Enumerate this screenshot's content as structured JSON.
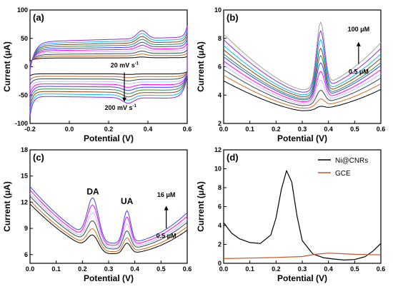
{
  "palette": [
    "#000000",
    "#d2691e",
    "#2f4f4f",
    "#c0c0ff",
    "#ff00ff",
    "#4040ff",
    "#2e8b57",
    "#8b4513",
    "#00bfff",
    "#8a2be2",
    "#a0a0a0",
    "#6b8e23",
    "#7b2aa0"
  ],
  "chart_data": [
    {
      "panel": "(a)",
      "type": "line",
      "xlabel": "Potential (V)",
      "ylabel": "Current (μA)",
      "xlim": [
        -0.2,
        0.6
      ],
      "ylim": [
        -100,
        100
      ],
      "xticks": [
        "-0.2",
        "0.0",
        "0.2",
        "0.4",
        "0.6"
      ],
      "yticks": [
        "-100",
        "-50",
        "0",
        "50",
        "100"
      ],
      "annotations": {
        "top": "20 mV s",
        "top_sup": "-1",
        "bottom": "200 mV s",
        "bottom_sup": "-1"
      },
      "scan_rates_mV_s": [
        20,
        200
      ],
      "curves": 10
    },
    {
      "panel": "(b)",
      "type": "line",
      "xlabel": "Potential (V)",
      "ylabel": "Current (μA)",
      "xlim": [
        0.0,
        0.6
      ],
      "ylim": [
        2,
        10
      ],
      "xticks": [
        "0.0",
        "0.1",
        "0.2",
        "0.3",
        "0.4",
        "0.5",
        "0.6"
      ],
      "yticks": [
        "2",
        "4",
        "6",
        "8",
        "10"
      ],
      "annotations": {
        "high": "100 μM",
        "low": "0.5 μM"
      },
      "peak_x": 0.37,
      "peak_heights": [
        3.1,
        3.6,
        4.2,
        4.9,
        5.5,
        6.1,
        6.6,
        7.1,
        7.7,
        8.3,
        8.9
      ],
      "base_at_0": [
        5.0,
        5.4,
        5.8,
        6.1,
        6.4,
        6.7,
        6.9,
        7.2,
        7.5,
        7.9,
        8.3
      ]
    },
    {
      "panel": "(c)",
      "type": "line",
      "xlabel": "Potential (V)",
      "ylabel": "Current (μA)",
      "xlim": [
        0.0,
        0.6
      ],
      "ylim": [
        5,
        18
      ],
      "xticks": [
        "0.0",
        "0.1",
        "0.2",
        "0.3",
        "0.4",
        "0.5",
        "0.6"
      ],
      "yticks": [
        "6",
        "9",
        "12",
        "15",
        "18"
      ],
      "annotations": {
        "peak1": "DA",
        "peak2": "UA",
        "high": "16 μM",
        "low": "0.5 μM"
      },
      "peak1_x": 0.24,
      "peak2_x": 0.37,
      "peak1_heights": [
        7.8,
        8.5,
        9.4,
        10.3,
        11.2,
        12.0
      ],
      "peak2_heights": [
        7.3,
        7.9,
        8.7,
        9.5,
        10.3,
        11.0
      ],
      "base_at_0": [
        11.8,
        12.2,
        12.7,
        13.0,
        13.4,
        13.8
      ]
    },
    {
      "panel": "(d)",
      "type": "line",
      "xlabel": "Potential (V)",
      "ylabel": "Current (μA)",
      "xlim": [
        0.0,
        0.6
      ],
      "ylim": [
        0,
        12
      ],
      "xticks": [
        "0.0",
        "0.1",
        "0.2",
        "0.3",
        "0.4",
        "0.5",
        "0.6"
      ],
      "yticks": [
        "0",
        "2",
        "4",
        "6",
        "8",
        "10",
        "12"
      ],
      "legend_position": "top-right",
      "series": [
        {
          "name": "Ni@CNRs",
          "color": "#000000",
          "x": [
            0.0,
            0.03,
            0.06,
            0.1,
            0.14,
            0.18,
            0.2,
            0.22,
            0.24,
            0.26,
            0.28,
            0.3,
            0.34,
            0.38,
            0.42,
            0.46,
            0.5,
            0.54,
            0.57,
            0.6
          ],
          "y": [
            4.3,
            3.2,
            2.6,
            2.2,
            2.1,
            3.0,
            4.8,
            7.8,
            9.8,
            8.6,
            5.0,
            2.4,
            1.0,
            0.6,
            0.45,
            0.35,
            0.4,
            0.7,
            1.3,
            2.1
          ]
        },
        {
          "name": "GCE",
          "color": "#c0582b",
          "x": [
            0.0,
            0.1,
            0.2,
            0.3,
            0.35,
            0.4,
            0.45,
            0.5,
            0.55,
            0.6
          ],
          "y": [
            0.5,
            0.55,
            0.62,
            0.72,
            0.95,
            1.08,
            1.02,
            0.95,
            0.92,
            0.9
          ]
        }
      ]
    }
  ]
}
